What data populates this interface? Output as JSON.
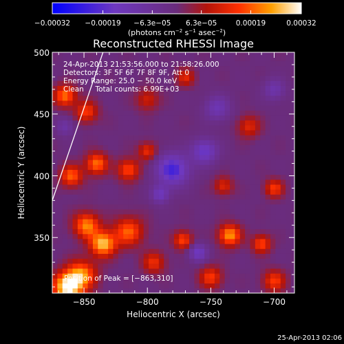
{
  "chart_data": {
    "type": "heatmap",
    "title": "Reconstructed RHESSI Image",
    "xlabel": "Heliocentric X (arcsec)",
    "ylabel": "Heliocentric Y (arcsec)",
    "xlim": [
      -875,
      -684
    ],
    "ylim": [
      305,
      500
    ],
    "x_ticks": [
      -850,
      -800,
      -750,
      -700
    ],
    "x_tick_labels": [
      "−850",
      "−800",
      "−750",
      "−700"
    ],
    "y_ticks": [
      350,
      400,
      450,
      500
    ],
    "y_tick_labels": [
      "350",
      "400",
      "450",
      "500"
    ],
    "colorbar": {
      "range": [
        -0.00032,
        0.00032
      ],
      "ticks": [
        -0.00032,
        -0.00019,
        -6.3e-05,
        6.3e-05,
        0.00019,
        0.00032
      ],
      "tick_labels": [
        "−0.00032",
        "−0.00019",
        "−6.3e−05",
        "6.3e−05",
        "0.00019",
        "0.00032"
      ],
      "unit_main": "(photons cm",
      "unit_sup1": "−2",
      "unit_mid": " s",
      "unit_sup2": "−1",
      "unit_end": " asec",
      "unit_sup3": "−2",
      "unit_close": ")"
    },
    "annotations": [
      "24-Apr-2013 21:53:56.000 to 21:58:26.000",
      "Detectors: 3F 5F 6F 7F 8F 9F, Att 0",
      "Energy Range: 25.0 − 50.0 keV",
      "Clean     Total counts: 6.99E+03"
    ],
    "peak_label": "Position of Peak = [−863,310]",
    "limb_line": {
      "x": [
        -875,
        -835
      ],
      "y": [
        380,
        500
      ]
    },
    "sources": [
      {
        "x": -863,
        "y": 310,
        "v": 1.0,
        "s": 8
      },
      {
        "x": -852,
        "y": 320,
        "v": 0.7,
        "s": 8
      },
      {
        "x": -835,
        "y": 345,
        "v": 0.85,
        "s": 7
      },
      {
        "x": -848,
        "y": 360,
        "v": 0.7,
        "s": 7
      },
      {
        "x": -815,
        "y": 355,
        "v": 0.6,
        "s": 8
      },
      {
        "x": -860,
        "y": 400,
        "v": 0.6,
        "s": 6
      },
      {
        "x": -840,
        "y": 410,
        "v": 0.65,
        "s": 6
      },
      {
        "x": -815,
        "y": 405,
        "v": 0.55,
        "s": 6
      },
      {
        "x": -800,
        "y": 420,
        "v": 0.45,
        "s": 5
      },
      {
        "x": -865,
        "y": 465,
        "v": 0.65,
        "s": 6
      },
      {
        "x": -848,
        "y": 452,
        "v": 0.5,
        "s": 6
      },
      {
        "x": -800,
        "y": 462,
        "v": 0.35,
        "s": 6
      },
      {
        "x": -770,
        "y": 480,
        "v": 0.4,
        "s": 5
      },
      {
        "x": -795,
        "y": 330,
        "v": 0.45,
        "s": 6
      },
      {
        "x": -772,
        "y": 348,
        "v": 0.55,
        "s": 5
      },
      {
        "x": -735,
        "y": 352,
        "v": 0.75,
        "s": 6
      },
      {
        "x": -710,
        "y": 345,
        "v": 0.55,
        "s": 5
      },
      {
        "x": -700,
        "y": 315,
        "v": 0.5,
        "s": 6
      },
      {
        "x": -750,
        "y": 318,
        "v": 0.5,
        "s": 6
      },
      {
        "x": -700,
        "y": 390,
        "v": 0.5,
        "s": 5
      },
      {
        "x": -740,
        "y": 392,
        "v": 0.4,
        "s": 5
      },
      {
        "x": -720,
        "y": 440,
        "v": 0.4,
        "s": 6
      },
      {
        "x": -780,
        "y": 405,
        "v": -0.7,
        "s": 9
      },
      {
        "x": -755,
        "y": 420,
        "v": -0.55,
        "s": 7
      },
      {
        "x": -760,
        "y": 338,
        "v": -0.5,
        "s": 5
      },
      {
        "x": -745,
        "y": 455,
        "v": -0.4,
        "s": 7
      },
      {
        "x": -700,
        "y": 470,
        "v": -0.35,
        "s": 6
      },
      {
        "x": -865,
        "y": 440,
        "v": -0.3,
        "s": 5
      },
      {
        "x": -790,
        "y": 385,
        "v": -0.45,
        "s": 5
      }
    ]
  },
  "footer": {
    "timestamp": "25-Apr-2013 02:06"
  }
}
